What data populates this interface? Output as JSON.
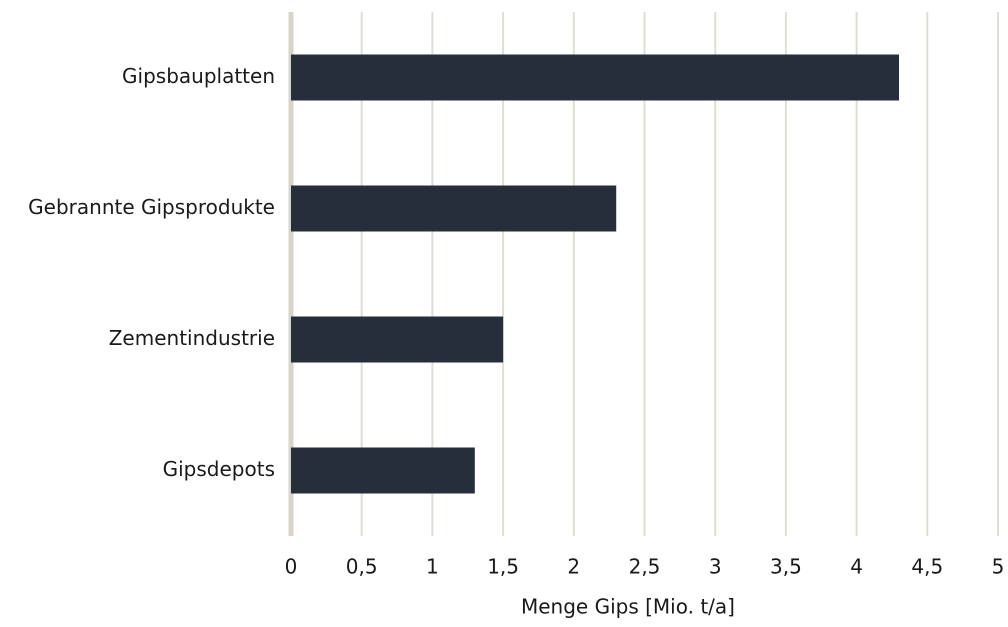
{
  "chart_data": {
    "type": "bar",
    "orientation": "horizontal",
    "categories": [
      "Gipsbauplatten",
      "Gebrannte Gipsprodukte",
      "Zementindustrie",
      "Gipsdepots"
    ],
    "values": [
      4.3,
      2.3,
      1.5,
      1.3
    ],
    "color": "#272e3b",
    "xlabel": "Menge Gips [Mio. t/a]",
    "xlim": [
      0,
      5
    ],
    "xticks": [
      0,
      {
        "value": 0.5,
        "label": "0,5"
      },
      1,
      {
        "value": 1.5,
        "label": "1,5"
      },
      2,
      {
        "value": 2.5,
        "label": "2,5"
      },
      3,
      {
        "value": 3.5,
        "label": "3,5"
      },
      4,
      {
        "value": 4.5,
        "label": "4,5"
      },
      5
    ],
    "grid": true
  }
}
